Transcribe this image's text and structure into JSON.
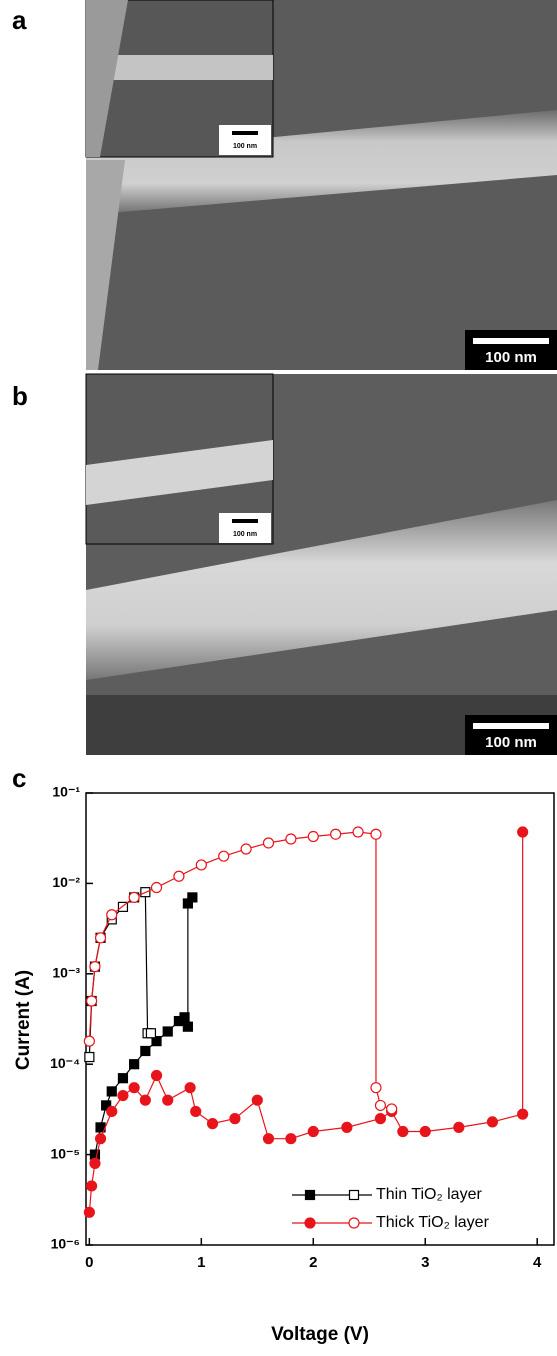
{
  "panels": [
    {
      "label": "a",
      "scale_bar": "100 nm",
      "inset_scale_bar": "100 nm"
    },
    {
      "label": "b",
      "scale_bar": "100 nm",
      "inset_scale_bar": "100 nm"
    }
  ],
  "chart_data": {
    "type": "line",
    "panel_label": "c",
    "xlabel": "Voltage (V)",
    "ylabel": "Current (A)",
    "xlim": [
      -0.03,
      4.15
    ],
    "xticks": [
      0,
      1,
      2,
      3,
      4
    ],
    "ylim": [
      1e-06,
      0.1
    ],
    "log_y": true,
    "yticks": [
      {
        "value": 1e-06,
        "label": "10⁻⁶"
      },
      {
        "value": 1e-05,
        "label": "10⁻⁵"
      },
      {
        "value": 0.0001,
        "label": "10⁻⁴"
      },
      {
        "value": 0.001,
        "label": "10⁻³"
      },
      {
        "value": 0.01,
        "label": "10⁻²"
      },
      {
        "value": 0.1,
        "label": "10⁻¹"
      }
    ],
    "legend": "lower right",
    "series": [
      {
        "name": "Thin TiO₂ layer",
        "color": "#000000",
        "marker": "square",
        "x": [
          0.05,
          0.1,
          0.15,
          0.2,
          0.3,
          0.4,
          0.5,
          0.6,
          0.7,
          0.8,
          0.85,
          0.88,
          0.88,
          0.92
        ],
        "values": [
          1e-05,
          2e-05,
          3.5e-05,
          5e-05,
          7e-05,
          0.0001,
          0.00014,
          0.00018,
          0.00023,
          0.0003,
          0.00033,
          0.00026,
          0.006,
          0.007
        ],
        "reset_x": [
          0,
          0.02,
          0.05,
          0.1,
          0.2,
          0.3,
          0.4,
          0.5,
          0.52,
          0.55
        ],
        "reset_values": [
          0.00012,
          0.0005,
          0.0012,
          0.0025,
          0.004,
          0.0055,
          0.007,
          0.008,
          0.00022,
          0.00022
        ]
      },
      {
        "name": "Thick TiO₂ layer",
        "color": "#e8141c",
        "marker": "circle",
        "x": [
          0,
          0.02,
          0.05,
          0.1,
          0.2,
          0.3,
          0.4,
          0.5,
          0.6,
          0.7,
          0.9,
          0.95,
          1.1,
          1.3,
          1.5,
          1.6,
          1.8,
          2.0,
          2.3,
          2.6,
          2.7,
          2.8,
          3.0,
          3.3,
          3.6,
          3.87,
          3.87
        ],
        "values": [
          2.3e-06,
          4.5e-06,
          8e-06,
          1.5e-05,
          3e-05,
          4.5e-05,
          5.5e-05,
          4e-05,
          7.5e-05,
          4e-05,
          5.5e-05,
          3e-05,
          2.2e-05,
          2.5e-05,
          4e-05,
          1.5e-05,
          1.5e-05,
          1.8e-05,
          2e-05,
          2.5e-05,
          3e-05,
          1.8e-05,
          1.8e-05,
          2e-05,
          2.3e-05,
          2.8e-05,
          0.037
        ],
        "reset_x": [
          0,
          0.02,
          0.05,
          0.1,
          0.2,
          0.4,
          0.6,
          0.8,
          1.0,
          1.2,
          1.4,
          1.6,
          1.8,
          2.0,
          2.2,
          2.4,
          2.56,
          2.56,
          2.6,
          2.7
        ],
        "reset_values": [
          0.00018,
          0.0005,
          0.0012,
          0.0025,
          0.0045,
          0.007,
          0.009,
          0.012,
          0.016,
          0.02,
          0.024,
          0.028,
          0.031,
          0.033,
          0.035,
          0.037,
          0.035,
          5.5e-05,
          3.5e-05,
          3.2e-05
        ]
      }
    ]
  }
}
